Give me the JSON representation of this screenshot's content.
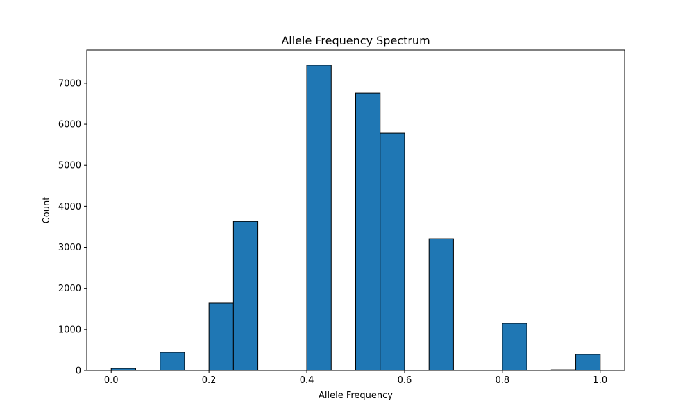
{
  "chart_data": {
    "type": "bar",
    "title": "Allele Frequency Spectrum",
    "xlabel": "Allele Frequency",
    "ylabel": "Count",
    "xlim": [
      -0.05,
      1.05
    ],
    "ylim": [
      0,
      7810
    ],
    "xticks": [
      {
        "value": 0.0,
        "label": "0.0"
      },
      {
        "value": 0.2,
        "label": "0.2"
      },
      {
        "value": 0.4,
        "label": "0.4"
      },
      {
        "value": 0.6,
        "label": "0.6"
      },
      {
        "value": 0.8,
        "label": "0.8"
      },
      {
        "value": 1.0,
        "label": "1.0"
      }
    ],
    "yticks": [
      {
        "value": 0,
        "label": "0"
      },
      {
        "value": 1000,
        "label": "1000"
      },
      {
        "value": 2000,
        "label": "2000"
      },
      {
        "value": 3000,
        "label": "3000"
      },
      {
        "value": 4000,
        "label": "4000"
      },
      {
        "value": 5000,
        "label": "5000"
      },
      {
        "value": 6000,
        "label": "6000"
      },
      {
        "value": 7000,
        "label": "7000"
      }
    ],
    "bins": [
      {
        "start": 0.0,
        "end": 0.05,
        "count": 50
      },
      {
        "start": 0.05,
        "end": 0.1,
        "count": 0
      },
      {
        "start": 0.1,
        "end": 0.15,
        "count": 440
      },
      {
        "start": 0.15,
        "end": 0.2,
        "count": 0
      },
      {
        "start": 0.2,
        "end": 0.25,
        "count": 1640
      },
      {
        "start": 0.25,
        "end": 0.3,
        "count": 3630
      },
      {
        "start": 0.3,
        "end": 0.35,
        "count": 0
      },
      {
        "start": 0.35,
        "end": 0.4,
        "count": 0
      },
      {
        "start": 0.4,
        "end": 0.45,
        "count": 7440
      },
      {
        "start": 0.45,
        "end": 0.5,
        "count": 0
      },
      {
        "start": 0.5,
        "end": 0.55,
        "count": 6760
      },
      {
        "start": 0.55,
        "end": 0.6,
        "count": 5780
      },
      {
        "start": 0.6,
        "end": 0.65,
        "count": 0
      },
      {
        "start": 0.65,
        "end": 0.7,
        "count": 3210
      },
      {
        "start": 0.7,
        "end": 0.75,
        "count": 0
      },
      {
        "start": 0.75,
        "end": 0.8,
        "count": 0
      },
      {
        "start": 0.8,
        "end": 0.85,
        "count": 1150
      },
      {
        "start": 0.85,
        "end": 0.9,
        "count": 0
      },
      {
        "start": 0.9,
        "end": 0.95,
        "count": 15
      },
      {
        "start": 0.95,
        "end": 1.0,
        "count": 390
      }
    ],
    "grid": false,
    "legend": "none",
    "colors": {
      "bar_fill": "#1f77b4",
      "bar_edge": "#000000"
    }
  }
}
